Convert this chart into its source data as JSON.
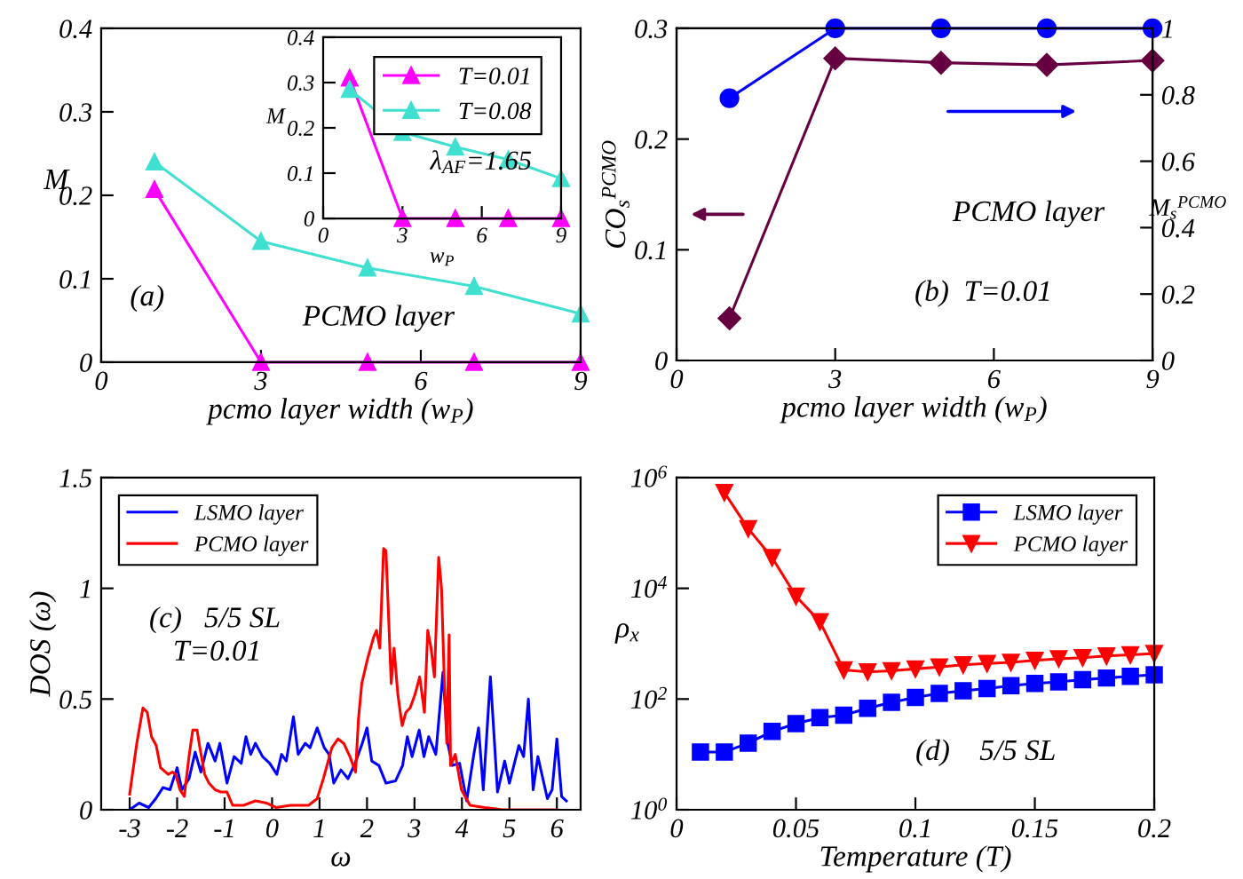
{
  "chart_data": [
    {
      "type": "line",
      "xlabel": "pcmo layer width (w$_{P}$)",
      "ylabel": "M",
      "x": [
        1,
        3,
        5,
        7,
        9
      ],
      "xlim": [
        0,
        9
      ],
      "xticks": [
        0,
        3,
        6,
        9
      ],
      "ylim": [
        0,
        0.4
      ],
      "yticks": [
        0,
        0.1,
        0.2,
        0.3,
        0.4
      ],
      "marker": "triangle",
      "series": [
        {
          "color": "#ff00ff",
          "values": [
            0.207,
            0,
            0,
            0,
            0
          ]
        },
        {
          "color": "#40e0d0",
          "values": [
            0.24,
            0.145,
            0.113,
            0.091,
            0.058
          ]
        }
      ],
      "annotations": [
        "(a)",
        "PCMO layer"
      ]
    },
    {
      "type": "line",
      "xlabel": "w$_{P}$",
      "ylabel": "M",
      "x": [
        1,
        3,
        5,
        7,
        9
      ],
      "xlim": [
        0,
        9
      ],
      "xticks": [
        0,
        3,
        6,
        9
      ],
      "ylim": [
        0,
        0.4
      ],
      "yticks": [
        0,
        0.1,
        0.2,
        0.3,
        0.4
      ],
      "marker": "triangle",
      "legend": "top right",
      "series": [
        {
          "name": "T=0.01",
          "color": "#ff00ff",
          "values": [
            0.31,
            0,
            0,
            0,
            0
          ]
        },
        {
          "name": "T=0.08",
          "color": "#40e0d0",
          "values": [
            0.285,
            0.19,
            0.158,
            0.13,
            0.088
          ]
        }
      ],
      "annotations": [
        "λ$_{AF}$=1.65"
      ]
    },
    {
      "type": "line",
      "xlabel": "pcmo layer width (w$_{P}$)",
      "ylabel": "CO$_{s}$$^{PCMO}$",
      "y2label": "M$_{s}$$^{PCMO}$",
      "x": [
        1,
        3,
        5,
        7,
        9
      ],
      "xlim": [
        0,
        9
      ],
      "xticks": [
        0,
        3,
        6,
        9
      ],
      "ylim": [
        0,
        0.3
      ],
      "yticks": [
        0,
        0.1,
        0.2,
        0.3
      ],
      "y2lim": [
        0,
        1
      ],
      "y2ticks": [
        0,
        0.2,
        0.4,
        0.6,
        0.8,
        1
      ],
      "series": [
        {
          "color": "#660040",
          "marker": "diamond",
          "values": [
            0.038,
            0.273,
            0.269,
            0.267,
            0.271
          ]
        },
        {
          "color": "#0000ff",
          "marker": "circle",
          "axis": "y2",
          "values": [
            0.79,
            1,
            1,
            1,
            1
          ]
        }
      ],
      "annotations": [
        "PCMO layer",
        "(b)  T=0.01"
      ]
    },
    {
      "type": "line",
      "xlabel": "ω",
      "ylabel": "DOS (ω)",
      "xlim": [
        -3.6,
        6.5
      ],
      "xticks": [
        -3,
        -2,
        -1,
        0,
        1,
        2,
        3,
        4,
        5,
        6
      ],
      "ylim": [
        0,
        1.5
      ],
      "yticks": [
        0,
        0.5,
        1,
        1.5
      ],
      "legend": "top left",
      "series": [
        {
          "name": "LSMO layer",
          "color": "#0000ff",
          "x": [
            -3.0,
            -2.8,
            -2.6,
            -2.45,
            -2.3,
            -2.15,
            -2.0,
            -1.9,
            -1.75,
            -1.62,
            -1.5,
            -1.35,
            -1.2,
            -1.1,
            -0.95,
            -0.8,
            -0.65,
            -0.55,
            -0.45,
            -0.35,
            -0.2,
            -0.05,
            0.1,
            0.2,
            0.3,
            0.45,
            0.55,
            0.7,
            0.8,
            0.95,
            1.1,
            1.2,
            1.3,
            1.45,
            1.6,
            1.75,
            1.9,
            2.0,
            2.1,
            2.25,
            2.4,
            2.6,
            2.75,
            2.85,
            2.95,
            3.1,
            3.2,
            3.3,
            3.45,
            3.6,
            3.7,
            3.8,
            3.95,
            4.1,
            4.25,
            4.35,
            4.45,
            4.6,
            4.75,
            4.9,
            5.0,
            5.2,
            5.3,
            5.4,
            5.5,
            5.6,
            5.8,
            5.9,
            6.0,
            6.1,
            6.2
          ],
          "values": [
            0,
            0.03,
            0.01,
            0.05,
            0.1,
            0.09,
            0.19,
            0.09,
            0.14,
            0.26,
            0.17,
            0.3,
            0.22,
            0.3,
            0.12,
            0.24,
            0.21,
            0.33,
            0.25,
            0.3,
            0.24,
            0.21,
            0.16,
            0.25,
            0.22,
            0.42,
            0.25,
            0.3,
            0.28,
            0.37,
            0.28,
            0.25,
            0.12,
            0.18,
            0.14,
            0.21,
            0.3,
            0.37,
            0.22,
            0.2,
            0.12,
            0.13,
            0.2,
            0.33,
            0.24,
            0.36,
            0.24,
            0.33,
            0.25,
            0.62,
            0.3,
            0.2,
            0.21,
            0.04,
            0.25,
            0.37,
            0.09,
            0.6,
            0.08,
            0.22,
            0.12,
            0.29,
            0.24,
            0.5,
            0.09,
            0.24,
            0.05,
            0.09,
            0.32,
            0.06,
            0.04
          ]
        },
        {
          "name": "PCMO layer",
          "color": "#ff0000",
          "x": [
            -3.0,
            -2.85,
            -2.72,
            -2.63,
            -2.54,
            -2.44,
            -2.35,
            -2.19,
            -2.1,
            -2.03,
            -1.94,
            -1.85,
            -1.75,
            -1.67,
            -1.58,
            -1.52,
            -1.42,
            -1.33,
            -1.2,
            -1.08,
            -0.95,
            -0.83,
            -0.6,
            -0.35,
            -0.11,
            0.08,
            0.39,
            0.77,
            0.95,
            1.08,
            1.26,
            1.39,
            1.51,
            1.64,
            1.76,
            1.82,
            1.89,
            2.01,
            2.14,
            2.2,
            2.27,
            2.35,
            2.4,
            2.51,
            2.57,
            2.65,
            2.74,
            2.82,
            2.91,
            3.01,
            3.11,
            3.21,
            3.28,
            3.35,
            3.42,
            3.51,
            3.57,
            3.63,
            3.68,
            3.73,
            3.76,
            3.86,
            3.99,
            4.17,
            4.48,
            4.86,
            5.5,
            6.0
          ],
          "values": [
            0.07,
            0.3,
            0.46,
            0.44,
            0.33,
            0.29,
            0.19,
            0.16,
            0.17,
            0.16,
            0.09,
            0.06,
            0.24,
            0.36,
            0.36,
            0.28,
            0.16,
            0.12,
            0.09,
            0.08,
            0.08,
            0.02,
            0.02,
            0.04,
            0.03,
            0.01,
            0.02,
            0.02,
            0.05,
            0.14,
            0.28,
            0.32,
            0.3,
            0.24,
            0.17,
            0.41,
            0.57,
            0.68,
            0.78,
            0.81,
            0.73,
            1.18,
            1.17,
            0.57,
            0.73,
            0.52,
            0.38,
            0.44,
            0.46,
            0.52,
            0.6,
            0.44,
            0.81,
            0.73,
            0.6,
            1.14,
            1.0,
            0.57,
            0.3,
            0.79,
            0.2,
            0.25,
            0.09,
            0.02,
            0.01,
            0,
            0,
            0
          ]
        }
      ],
      "annotations": [
        "(c)   5/5 SL",
        "T=0.01"
      ]
    },
    {
      "type": "line",
      "xlabel": "Temperature (T)",
      "ylabel": "ρ$_{x}$",
      "log": "y",
      "xlim": [
        0,
        0.2
      ],
      "xticks": [
        0,
        0.05,
        0.1,
        0.15,
        0.2
      ],
      "ylim": [
        1,
        1000000
      ],
      "yticks": [
        {
          "value": 1,
          "label": "10$^{0}$"
        },
        {
          "value": 100,
          "label": "10$^{2}$"
        },
        {
          "value": 10000,
          "label": "10$^{4}$"
        },
        {
          "value": 1000000,
          "label": "10$^{6}$"
        }
      ],
      "legend": "top right",
      "series": [
        {
          "name": "LSMO layer",
          "color": "#0000ff",
          "marker": "square",
          "x": [
            0.01,
            0.02,
            0.03,
            0.04,
            0.05,
            0.06,
            0.07,
            0.08,
            0.09,
            0.1,
            0.11,
            0.12,
            0.13,
            0.14,
            0.15,
            0.16,
            0.17,
            0.18,
            0.19,
            0.2
          ],
          "values": [
            11,
            11,
            16,
            26,
            36,
            46,
            51,
            68,
            87,
            107,
            126,
            141,
            155,
            174,
            191,
            204,
            224,
            240,
            257,
            275
          ]
        },
        {
          "name": "PCMO layer",
          "color": "#ff0000",
          "marker": "triangle_down",
          "x": [
            0.02,
            0.03,
            0.04,
            0.05,
            0.06,
            0.07,
            0.08,
            0.09,
            0.1,
            0.11,
            0.12,
            0.13,
            0.14,
            0.15,
            0.16,
            0.17,
            0.18,
            0.19,
            0.2
          ],
          "values": [
            540000,
            120000,
            36000,
            7200,
            2500,
            335,
            310,
            325,
            350,
            380,
            415,
            440,
            460,
            500,
            535,
            560,
            600,
            630,
            665
          ]
        }
      ],
      "annotations": [
        "(d)    5/5 SL"
      ]
    }
  ]
}
